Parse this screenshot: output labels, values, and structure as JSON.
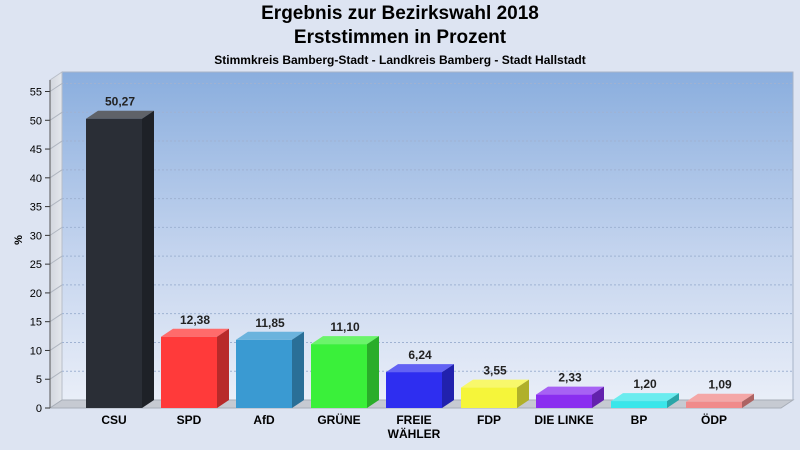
{
  "chart_data": {
    "type": "bar",
    "title": "Ergebnis zur Bezirkswahl 2018",
    "subtitle": "Erststimmen in Prozent",
    "subtitle2": "Stimmkreis Bamberg-Stadt - Landkreis Bamberg - Stadt Hallstadt",
    "ylabel": "%",
    "xlabel": "",
    "ylim": [
      0,
      57
    ],
    "yticks": [
      0,
      5,
      10,
      15,
      20,
      25,
      30,
      35,
      40,
      45,
      50,
      55
    ],
    "grid": true,
    "categories": [
      "CSU",
      "SPD",
      "AfD",
      "GRÜNE",
      "FREIE WÄHLER",
      "FDP",
      "DIE LINKE",
      "BP",
      "ÖDP"
    ],
    "category_lines": [
      [
        "CSU"
      ],
      [
        "SPD"
      ],
      [
        "AfD"
      ],
      [
        "GRÜNE"
      ],
      [
        "FREIE",
        "WÄHLER"
      ],
      [
        "FDP"
      ],
      [
        "DIE LINKE"
      ],
      [
        "BP"
      ],
      [
        "ÖDP"
      ]
    ],
    "values": [
      50.27,
      12.38,
      11.85,
      11.1,
      6.24,
      3.55,
      2.33,
      1.2,
      1.09
    ],
    "value_labels": [
      "50,27",
      "12,38",
      "11,85",
      "11,10",
      "6,24",
      "3,55",
      "2,33",
      "1,20",
      "1,09"
    ],
    "colors": [
      "#2a2e36",
      "#ff3a3a",
      "#3a9ad2",
      "#3af03a",
      "#2e2ef0",
      "#f5f53a",
      "#8a2ef0",
      "#3ae6ea",
      "#f08a8a"
    ]
  }
}
